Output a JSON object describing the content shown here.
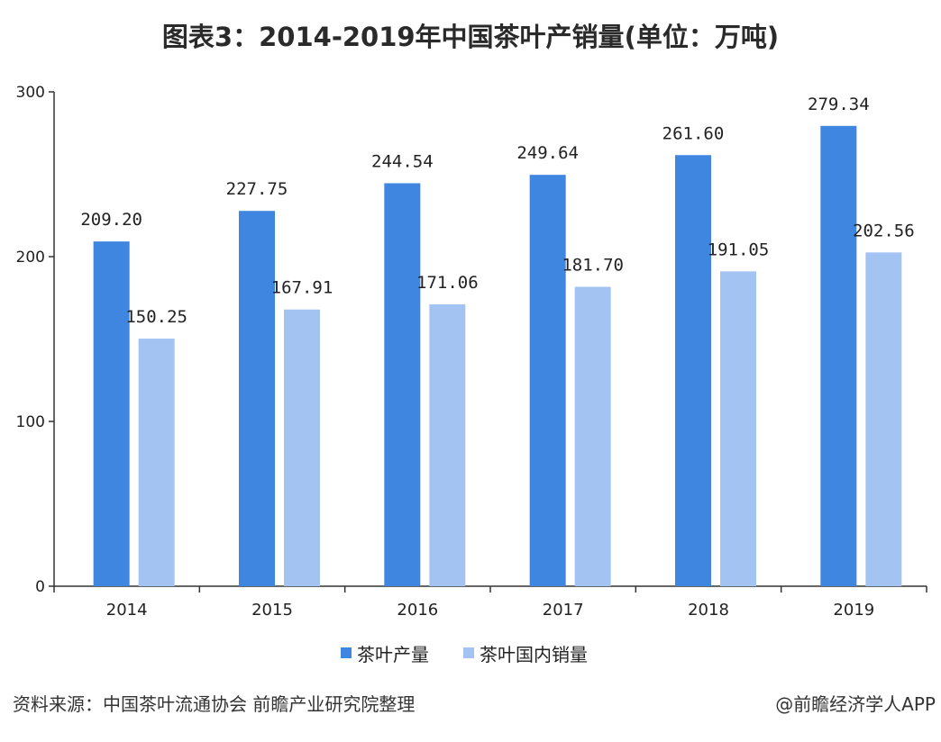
{
  "title": "图表3：2014-2019年中国茶叶产销量(单位：万吨)",
  "source": "资料来源：中国茶叶流通协会 前瞻产业研究院整理",
  "credit": "@前瞻经济学人APP",
  "colors": {
    "production": "#3f86e0",
    "domestic_sales": "#a3c4f2",
    "axis": "#333333"
  },
  "chart_data": {
    "type": "bar",
    "title": "图表3：2014-2019年中国茶叶产销量(单位：万吨)",
    "categories": [
      "2014",
      "2015",
      "2016",
      "2017",
      "2018",
      "2019"
    ],
    "series": [
      {
        "name": "茶叶产量",
        "values": [
          209.2,
          227.75,
          244.54,
          249.64,
          261.6,
          279.34
        ]
      },
      {
        "name": "茶叶国内销量",
        "values": [
          150.25,
          167.91,
          171.06,
          181.7,
          191.05,
          202.56
        ]
      }
    ],
    "data_labels": [
      [
        "209.20",
        "227.75",
        "244.54",
        "249.64",
        "261.60",
        "279.34"
      ],
      [
        "150.25",
        "167.91",
        "171.06",
        "181.70",
        "191.05",
        "202.56"
      ]
    ],
    "ylim": [
      0,
      300
    ],
    "yticks": [
      "0",
      "100",
      "200",
      "300"
    ],
    "xlabel": "",
    "ylabel": "",
    "grid": false,
    "legend_position": "bottom"
  }
}
